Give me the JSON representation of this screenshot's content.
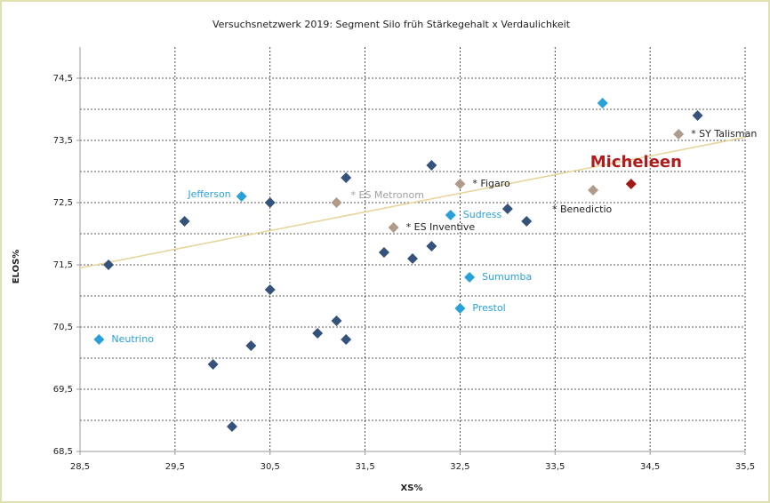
{
  "chart_data": {
    "type": "scatter",
    "title": "Versuchsnetzwerk 2019: Segment Silo früh Stärkegehalt x Verdaulichkeit",
    "x_label": "XS%",
    "y_label": "ELOS%",
    "xlim": [
      28.5,
      35.5
    ],
    "ylim": [
      68.5,
      75
    ],
    "xticks": [
      {
        "value": 28.5,
        "label": "28,5"
      },
      {
        "value": 29.5,
        "label": "29,5"
      },
      {
        "value": 30.5,
        "label": "30,5"
      },
      {
        "value": 31.5,
        "label": "31,5"
      },
      {
        "value": 32.5,
        "label": "32,5"
      },
      {
        "value": 33.5,
        "label": "33,5"
      },
      {
        "value": 34.5,
        "label": "34,5"
      },
      {
        "value": 35.5,
        "label": "35,5"
      }
    ],
    "yticks": [
      {
        "value": 68.5,
        "label": "68,5"
      },
      {
        "value": 69.5,
        "label": "69,5"
      },
      {
        "value": 70.5,
        "label": "70,5"
      },
      {
        "value": 71.5,
        "label": "71,5"
      },
      {
        "value": 72.5,
        "label": "72,5"
      },
      {
        "value": 73.5,
        "label": "73,5"
      },
      {
        "value": 74.5,
        "label": "74,5"
      }
    ],
    "y_minor_grid": [
      69,
      70,
      71,
      72,
      73,
      74
    ],
    "grid": true,
    "series": [
      {
        "color": "#34527a",
        "label_color": "#222222",
        "x": [
          28.8,
          29.6,
          30.5,
          30.5,
          31.3,
          32.2,
          31.7,
          32.0,
          32.2,
          33.0,
          33.2,
          35.0,
          29.9,
          30.3,
          31.0,
          31.2,
          31.3,
          30.1
        ],
        "y": [
          71.5,
          72.2,
          72.5,
          71.1,
          72.9,
          73.1,
          71.7,
          71.6,
          71.8,
          72.4,
          72.2,
          73.9,
          69.9,
          70.2,
          70.4,
          70.6,
          70.3,
          68.9
        ]
      },
      {
        "color": "#2aa0d8",
        "label_color": "#2aa0d8",
        "x": [
          28.7,
          30.2,
          32.4,
          32.6,
          32.5,
          34.0
        ],
        "y": [
          70.3,
          72.6,
          72.3,
          71.3,
          70.8,
          74.1
        ],
        "labels": [
          "Neutrino",
          "Jefferson",
          "Sudress",
          "Sumumba",
          "Prestol",
          null
        ]
      },
      {
        "color": "#b09a8a",
        "label_color": "#222222",
        "x": [
          31.2,
          31.8,
          32.5,
          33.9,
          34.8
        ],
        "y": [
          72.5,
          72.1,
          72.8,
          72.7,
          73.6
        ],
        "labels": [
          "* ES Metronom",
          "* ES Inventive",
          "* Figaro",
          "* Benedictio",
          "* SY Talisman"
        ]
      },
      {
        "color": "#a01818",
        "label_color": "#b01c1c",
        "x": [
          34.3
        ],
        "y": [
          72.8
        ],
        "labels": [
          "Micheleen"
        ]
      }
    ],
    "trendline": {
      "color": "#e8d398",
      "x": [
        28.5,
        35.5
      ],
      "y": [
        71.45,
        73.55
      ]
    }
  }
}
